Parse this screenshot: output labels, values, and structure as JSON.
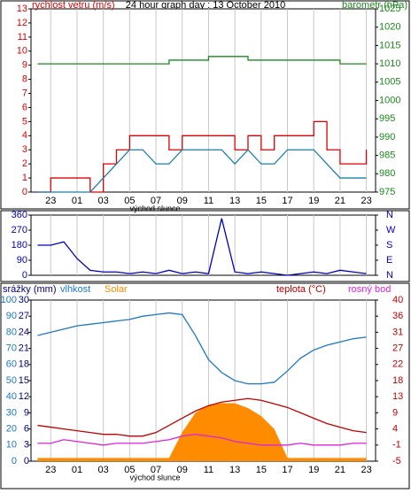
{
  "chart_data": [
    {
      "type": "line",
      "title": "24 hour graph day : 13 October 2010",
      "ylabel": "rychlost vetru (m/s)",
      "y2label": "barometr (hPa)",
      "annotation": "východ slunce",
      "x": [
        22,
        23,
        24,
        25,
        26,
        27,
        28,
        29,
        30,
        31,
        32,
        33,
        34,
        35,
        36,
        37,
        38,
        39,
        40,
        41,
        42,
        43,
        44,
        45,
        46,
        47
      ],
      "xlim": [
        21.5,
        47.7
      ],
      "xticks": [
        23,
        {
          "value": 25,
          "label": "01"
        },
        {
          "value": 27,
          "label": "03"
        },
        {
          "value": 29,
          "label": "05"
        },
        {
          "value": 31,
          "label": "07"
        },
        {
          "value": 33,
          "label": "09"
        },
        {
          "value": 35,
          "label": "11"
        },
        {
          "value": 37,
          "label": "13"
        },
        {
          "value": 39,
          "label": "15"
        },
        {
          "value": 41,
          "label": "17"
        },
        {
          "value": 43,
          "label": "19"
        },
        {
          "value": 45,
          "label": "21"
        },
        {
          "value": 47,
          "label": "23"
        }
      ],
      "ylim": [
        0,
        13
      ],
      "yticks": [
        0,
        1,
        2,
        3,
        4,
        5,
        6,
        7,
        8,
        9,
        10,
        11,
        12,
        13
      ],
      "y2lim": [
        975,
        1025
      ],
      "y2ticks": [
        975,
        980,
        985,
        990,
        995,
        1000,
        1005,
        1010,
        1015,
        1020,
        1025
      ],
      "series": [
        {
          "color": "#e00000",
          "step": true,
          "values": [
            0,
            1,
            1,
            1,
            0,
            2,
            3,
            4,
            4,
            4,
            3,
            4,
            4,
            4,
            4,
            3,
            4,
            3,
            4,
            4,
            4,
            5,
            3,
            2,
            2,
            3
          ]
        },
        {
          "color": "#1a7fa8",
          "values": [
            0,
            0,
            0,
            0,
            0,
            1,
            2,
            3,
            3,
            2,
            2,
            3,
            3,
            3,
            3,
            2,
            3,
            2,
            2,
            3,
            3,
            3,
            2,
            1,
            1,
            1
          ]
        },
        {
          "color": "#1a8a1a",
          "axis": "y2",
          "step": true,
          "values": [
            1010,
            1010,
            1010,
            1010,
            1010,
            1010,
            1010,
            1010,
            1010,
            1010,
            1011,
            1011,
            1011,
            1012,
            1012,
            1012,
            1011,
            1011,
            1011,
            1011,
            1011,
            1011,
            1011,
            1010,
            1010,
            1010
          ]
        }
      ]
    },
    {
      "type": "line",
      "x": [
        22,
        23,
        24,
        25,
        26,
        27,
        28,
        29,
        30,
        31,
        32,
        33,
        34,
        35,
        36,
        37,
        38,
        39,
        40,
        41,
        42,
        43,
        44,
        45,
        46,
        47
      ],
      "ylim": [
        0,
        360
      ],
      "yticks": [
        0,
        90,
        180,
        270,
        360
      ],
      "y2lim": [
        0,
        360
      ],
      "y2ticks": [
        {
          "value": 0,
          "label": "N"
        },
        {
          "value": 90,
          "label": "E"
        },
        {
          "value": 180,
          "label": "S"
        },
        {
          "value": 270,
          "label": "W"
        },
        {
          "value": 360,
          "label": "N"
        }
      ],
      "series": [
        {
          "color": "#0000c0",
          "values": [
            180,
            180,
            200,
            100,
            30,
            20,
            20,
            10,
            20,
            10,
            30,
            10,
            20,
            10,
            340,
            20,
            10,
            20,
            10,
            0,
            10,
            20,
            10,
            30,
            20,
            10
          ]
        }
      ]
    },
    {
      "type": "line",
      "ylabel": "srážky (mm)",
      "precip_color": "#000080",
      "annotation": "východ slunce",
      "x": [
        22,
        23,
        24,
        25,
        26,
        27,
        28,
        29,
        30,
        31,
        32,
        33,
        34,
        35,
        36,
        37,
        38,
        39,
        40,
        41,
        42,
        43,
        44,
        45,
        46,
        47
      ],
      "xticks": [
        23,
        {
          "value": 25,
          "label": "01"
        },
        {
          "value": 27,
          "label": "03"
        },
        {
          "value": 29,
          "label": "05"
        },
        {
          "value": 31,
          "label": "07"
        },
        {
          "value": 33,
          "label": "09"
        },
        {
          "value": 35,
          "label": "11"
        },
        {
          "value": 37,
          "label": "13"
        },
        {
          "value": 39,
          "label": "15"
        },
        {
          "value": 41,
          "label": "17"
        },
        {
          "value": 43,
          "label": "19"
        },
        {
          "value": 45,
          "label": "21"
        },
        {
          "value": 47,
          "label": "23"
        }
      ],
      "ylim": [
        0,
        100
      ],
      "yticks": [
        0,
        10,
        20,
        30,
        40,
        50,
        60,
        70,
        80,
        90,
        100
      ],
      "precip_lim": [
        0,
        30
      ],
      "precip_ticks": [
        0,
        3,
        6,
        9,
        12,
        15,
        18,
        21,
        24,
        27,
        30
      ],
      "y2lim": [
        -5,
        40
      ],
      "y2ticks": [
        -5,
        {
          "value": -0.5,
          "label": "-1"
        },
        4,
        {
          "value": 8.5,
          "label": "9"
        },
        13,
        {
          "value": 17.5,
          "label": "18"
        },
        22,
        {
          "value": 26.5,
          "label": "27"
        },
        31,
        {
          "value": 35.5,
          "label": "36"
        },
        40
      ],
      "series": [
        {
          "name": "vlhkost",
          "color": "#1e78c8",
          "values": [
            78,
            80,
            82,
            84,
            85,
            86,
            87,
            88,
            90,
            91,
            92,
            91,
            78,
            63,
            55,
            50,
            48,
            48,
            49,
            56,
            64,
            69,
            72,
            74,
            76,
            77
          ]
        },
        {
          "name": "Solar",
          "color": "#ff8c00",
          "area": true,
          "values": [
            2,
            2,
            2,
            2,
            2,
            2,
            2,
            2,
            2,
            2,
            2,
            18,
            30,
            35,
            36,
            36,
            33,
            28,
            20,
            2,
            2,
            2,
            2,
            2,
            2,
            2
          ]
        },
        {
          "name": "teplota (°C)",
          "color": "#c00000",
          "axis": "y2",
          "values": [
            5,
            4.5,
            4,
            3.5,
            3,
            2.5,
            2.5,
            2,
            2,
            3,
            5,
            7,
            9,
            10.5,
            11.5,
            12,
            12.5,
            12,
            11,
            10,
            8.5,
            7,
            5.5,
            4.5,
            3.5,
            3
          ]
        },
        {
          "name": "rosný bod",
          "color": "#e020e0",
          "axis": "y2",
          "values": [
            0,
            0,
            1,
            0.5,
            0,
            -0.5,
            0,
            0,
            0,
            0.5,
            1,
            2,
            2.5,
            2,
            1.5,
            0.5,
            0,
            -0.5,
            -0.5,
            -0.5,
            0,
            -0.5,
            -0.5,
            -0.5,
            0,
            0
          ]
        }
      ]
    }
  ]
}
